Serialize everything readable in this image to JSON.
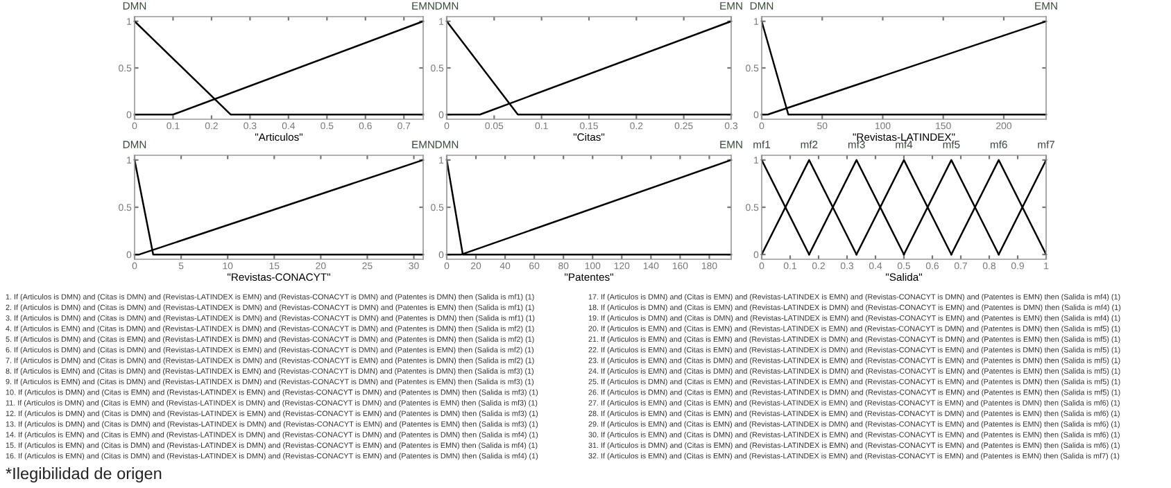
{
  "chart_data": [
    {
      "type": "line",
      "xlabel": "\"Articulos\"",
      "xlim": [
        0,
        0.75
      ],
      "xticks": [
        0,
        0.1,
        0.2,
        0.3,
        0.4,
        0.5,
        0.6,
        0.7
      ],
      "ylim": [
        -0.05,
        1.05
      ],
      "yticks": [
        0,
        0.5,
        1
      ],
      "grid": false,
      "marker": "none",
      "line_style": "solid",
      "series": [
        {
          "name": "DMN",
          "color": "#000000",
          "x": [
            0,
            0.25,
            0.75
          ],
          "values": [
            1,
            0,
            0
          ]
        },
        {
          "name": "EMN",
          "color": "#000000",
          "x": [
            0,
            0.1,
            0.75
          ],
          "values": [
            0,
            0,
            1
          ]
        }
      ]
    },
    {
      "type": "line",
      "xlabel": "\"Citas\"",
      "xlim": [
        0,
        0.3
      ],
      "xticks": [
        0,
        0.05,
        0.1,
        0.15,
        0.2,
        0.25,
        0.3
      ],
      "ylim": [
        -0.05,
        1.05
      ],
      "yticks": [
        0,
        0.5,
        1
      ],
      "grid": false,
      "marker": "none",
      "line_style": "solid",
      "series": [
        {
          "name": "DMN",
          "color": "#000000",
          "x": [
            0,
            0.075,
            0.3
          ],
          "values": [
            1,
            0,
            0
          ]
        },
        {
          "name": "EMN",
          "color": "#000000",
          "x": [
            0,
            0.035,
            0.3
          ],
          "values": [
            0,
            0,
            1
          ]
        }
      ]
    },
    {
      "type": "line",
      "xlabel": "\"Revistas-LATINDEX\"",
      "xlim": [
        0,
        235
      ],
      "xticks": [
        0,
        50,
        100,
        150,
        200
      ],
      "ylim": [
        -0.05,
        1.05
      ],
      "yticks": [
        0,
        0.5,
        1
      ],
      "grid": false,
      "marker": "none",
      "line_style": "solid",
      "series": [
        {
          "name": "DMN",
          "color": "#000000",
          "x": [
            0,
            22,
            235
          ],
          "values": [
            1,
            0,
            0
          ]
        },
        {
          "name": "EMN",
          "color": "#000000",
          "x": [
            0,
            5,
            235
          ],
          "values": [
            0,
            0,
            1
          ]
        }
      ]
    },
    {
      "type": "line",
      "xlabel": "\"Revistas-CONACYT\"",
      "xlim": [
        0,
        31
      ],
      "xticks": [
        0,
        5,
        10,
        15,
        20,
        25,
        30
      ],
      "ylim": [
        -0.05,
        1.05
      ],
      "yticks": [
        0,
        0.5,
        1
      ],
      "grid": false,
      "marker": "none",
      "line_style": "solid",
      "series": [
        {
          "name": "DMN",
          "color": "#000000",
          "x": [
            0,
            2,
            31
          ],
          "values": [
            1,
            0,
            0
          ]
        },
        {
          "name": "EMN",
          "color": "#000000",
          "x": [
            0,
            0.5,
            31
          ],
          "values": [
            0,
            0,
            1
          ]
        }
      ]
    },
    {
      "type": "line",
      "xlabel": "\"Patentes\"",
      "xlim": [
        0,
        195
      ],
      "xticks": [
        0,
        20,
        40,
        60,
        80,
        100,
        120,
        140,
        160,
        180
      ],
      "ylim": [
        -0.05,
        1.05
      ],
      "yticks": [
        0,
        0.5,
        1
      ],
      "grid": false,
      "marker": "none",
      "line_style": "solid",
      "series": [
        {
          "name": "DMN",
          "color": "#000000",
          "x": [
            0,
            11,
            195
          ],
          "values": [
            1,
            0,
            0
          ]
        },
        {
          "name": "EMN",
          "color": "#000000",
          "x": [
            0,
            10,
            195
          ],
          "values": [
            0,
            0,
            1
          ]
        }
      ]
    },
    {
      "type": "line",
      "xlabel": "\"Salida\"",
      "xlim": [
        0,
        1
      ],
      "xticks": [
        0,
        0.1,
        0.2,
        0.3,
        0.4,
        0.5,
        0.6,
        0.7,
        0.8,
        0.9,
        1
      ],
      "ylim": [
        -0.05,
        1.05
      ],
      "yticks": [
        0,
        0.5,
        1
      ],
      "grid": false,
      "marker": "none",
      "line_style": "solid",
      "series": [
        {
          "name": "mf1",
          "color": "#000000",
          "x": [
            0,
            0.1667
          ],
          "values": [
            1,
            0
          ]
        },
        {
          "name": "mf2",
          "color": "#000000",
          "x": [
            0,
            0.1667,
            0.3333
          ],
          "values": [
            0,
            1,
            0
          ]
        },
        {
          "name": "mf3",
          "color": "#000000",
          "x": [
            0.1667,
            0.3333,
            0.5
          ],
          "values": [
            0,
            1,
            0
          ]
        },
        {
          "name": "mf4",
          "color": "#000000",
          "x": [
            0.3333,
            0.5,
            0.6667
          ],
          "values": [
            0,
            1,
            0
          ]
        },
        {
          "name": "mf5",
          "color": "#000000",
          "x": [
            0.5,
            0.6667,
            0.8333
          ],
          "values": [
            0,
            1,
            0
          ]
        },
        {
          "name": "mf6",
          "color": "#000000",
          "x": [
            0.6667,
            0.8333,
            1
          ],
          "values": [
            0,
            1,
            0
          ]
        },
        {
          "name": "mf7",
          "color": "#000000",
          "x": [
            0.8333,
            1
          ],
          "values": [
            0,
            1
          ]
        }
      ]
    },
    {
      "type": "other",
      "annotations": [
        "1. If (Articulos is DMN) and (Citas is DMN) and (Revistas-LATINDEX is EMN) and (Revistas-CONACYT is DMN) and (Patentes is DMN) then (Salida is mf1) (1)",
        "2. If (Articulos is DMN) and (Citas is DMN) and (Revistas-LATINDEX is DMN) and (Revistas-CONACYT is DMN) and (Patentes is EMN) then (Salida is mf1) (1)",
        "3. If (Articulos is DMN) and (Citas is DMN) and (Revistas-LATINDEX is DMN) and (Revistas-CONACYT is DMN) and (Patentes is DMN) then (Salida is mf1) (1)",
        "4. If (Articulos is EMN) and (Citas is DMN) and (Revistas-LATINDEX is DMN) and (Revistas-CONACYT is DMN) and (Patentes is DMN) then (Salida is mf2) (1)",
        "5. If (Articulos is DMN) and (Citas is EMN) and (Revistas-LATINDEX is DMN) and (Revistas-CONACYT is DMN) and (Patentes is DMN) then (Salida is mf2) (1)",
        "6. If (Articulos is DMN) and (Citas is DMN) and (Revistas-LATINDEX is EMN) and (Revistas-CONACYT is DMN) and (Patentes is EMN) then (Salida is mf2) (1)",
        "7. If (Articulos is DMN) and (Citas is DMN) and (Revistas-LATINDEX is DMN) and (Revistas-CONACYT is EMN) and (Patentes is DMN) then (Salida is mf2) (1)",
        "8. If (Articulos is EMN) and (Citas is DMN) and (Revistas-LATINDEX is EMN) and (Revistas-CONACYT is DMN) and (Patentes is DMN) then (Salida is mf3) (1)",
        "9. If (Articulos is EMN) and (Citas is DMN) and (Revistas-LATINDEX is DMN) and (Revistas-CONACYT is DMN) and (Patentes is EMN) then (Salida is mf3) (1)",
        "10. If (Articulos is DMN) and (Citas is EMN) and (Revistas-LATINDEX is EMN) and (Revistas-CONACYT is DMN) and (Patentes is DMN) then (Salida is mf3) (1)",
        "11. If (Articulos is DMN) and (Citas is EMN) and (Revistas-LATINDEX is DMN) and (Revistas-CONACYT is DMN) and (Patentes is EMN) then (Salida is mf3) (1)",
        "12. If (Articulos is DMN) and (Citas is DMN) and (Revistas-LATINDEX is EMN) and (Revistas-CONACYT is EMN) and (Patentes is DMN) then (Salida is mf3) (1)",
        "13. If (Articulos is DMN) and (Citas is DMN) and (Revistas-LATINDEX is DMN) and (Revistas-CONACYT is EMN) and (Patentes is EMN) then (Salida is mf3) (1)",
        "14. If (Articulos is EMN) and (Citas is EMN) and (Revistas-LATINDEX is DMN) and (Revistas-CONACYT is DMN) and (Patentes is DMN) then (Salida is mf4) (1)",
        "15. If (Articulos is EMN) and (Citas is DMN) and (Revistas-LATINDEX is DMN) and (Revistas-CONACYT is EMN) and (Patentes is EMN) then (Salida is mf4) (1)",
        "16. If (Articulos is EMN) and (Citas is DMN) and (Revistas-LATINDEX is DMN) and (Revistas-CONACYT is EMN) and (Patentes is DMN) then (Salida is mf4) (1)",
        "17. If (Articulos is DMN) and (Citas is EMN) and (Revistas-LATINDEX is EMN) and (Revistas-CONACYT is DMN) and (Patentes is EMN) then (Salida is mf4) (1)",
        "18. If (Articulos is DMN) and (Citas is EMN) and (Revistas-LATINDEX is DMN) and (Revistas-CONACYT is EMN) and (Patentes is DMN) then (Salida is mf4) (1)",
        "19. If (Articulos is DMN) and (Citas is DMN) and (Revistas-LATINDEX is EMN) and (Revistas-CONACYT is EMN) and (Patentes is EMN) then (Salida is mf4) (1)",
        "20. If (Articulos is EMN) and (Citas is EMN) and (Revistas-LATINDEX is EMN) and (Revistas-CONACYT is DMN) and (Patentes is DMN) then (Salida is mf5) (1)",
        "21. If (Articulos is EMN) and (Citas is EMN) and (Revistas-LATINDEX is DMN) and (Revistas-CONACYT is DMN) and (Patentes is EMN) then (Salida is mf5) (1)",
        "22. If (Articulos is EMN) and (Citas is EMN) and (Revistas-LATINDEX is DMN) and (Revistas-CONACYT is EMN) and (Patentes is DMN) then (Salida is mf5) (1)",
        "23. If (Articulos is EMN) and (Citas is DMN) and (Revistas-LATINDEX is EMN) and (Revistas-CONACYT is EMN) and (Patentes is DMN) then (Salida is mf5) (1)",
        "24. If (Articulos is EMN) and (Citas is DMN) and (Revistas-LATINDEX is DMN) and (Revistas-CONACYT is EMN) and (Patentes is EMN) then (Salida is mf5) (1)",
        "25. If (Articulos is DMN) and (Citas is EMN) and (Revistas-LATINDEX is EMN) and (Revistas-CONACYT is EMN) and (Patentes is DMN) then (Salida is mf5) (1)",
        "26. If (Articulos is DMN) and (Citas is EMN) and (Revistas-LATINDEX is DMN) and (Revistas-CONACYT is EMN) and (Patentes is EMN) then (Salida is mf5) (1)",
        "27. If (Articulos is EMN) and (Citas is EMN) and (Revistas-LATINDEX is EMN) and (Revistas-CONACYT is EMN) and (Patentes is DMN) then (Salida is mf6) (1)",
        "28. If (Articulos is EMN) and (Citas is EMN) and (Revistas-LATINDEX is EMN) and (Revistas-CONACYT is DMN) and (Patentes is EMN) then (Salida is mf6) (1)",
        "29. If (Articulos is EMN) and (Citas is EMN) and (Revistas-LATINDEX is DMN) and (Revistas-CONACYT is EMN) and (Patentes is EMN) then (Salida is mf6) (1)",
        "30. If (Articulos is EMN) and (Citas is DMN) and (Revistas-LATINDEX is EMN) and (Revistas-CONACYT is EMN) and (Patentes is EMN) then (Salida is mf6) (1)",
        "31. If (Articulos is DMN) and (Citas is EMN) and (Revistas-LATINDEX is EMN) and (Revistas-CONACYT is EMN) and (Patentes is EMN) then (Salida is mf6) (1)",
        "32. If (Articulos is EMN) and (Citas is EMN) and (Revistas-LATINDEX is EMN) and (Revistas-CONACYT is EMN) and (Patentes is EMN) then (Salida is mf7) (1)",
        "*Ilegibilidad de origen"
      ]
    }
  ]
}
